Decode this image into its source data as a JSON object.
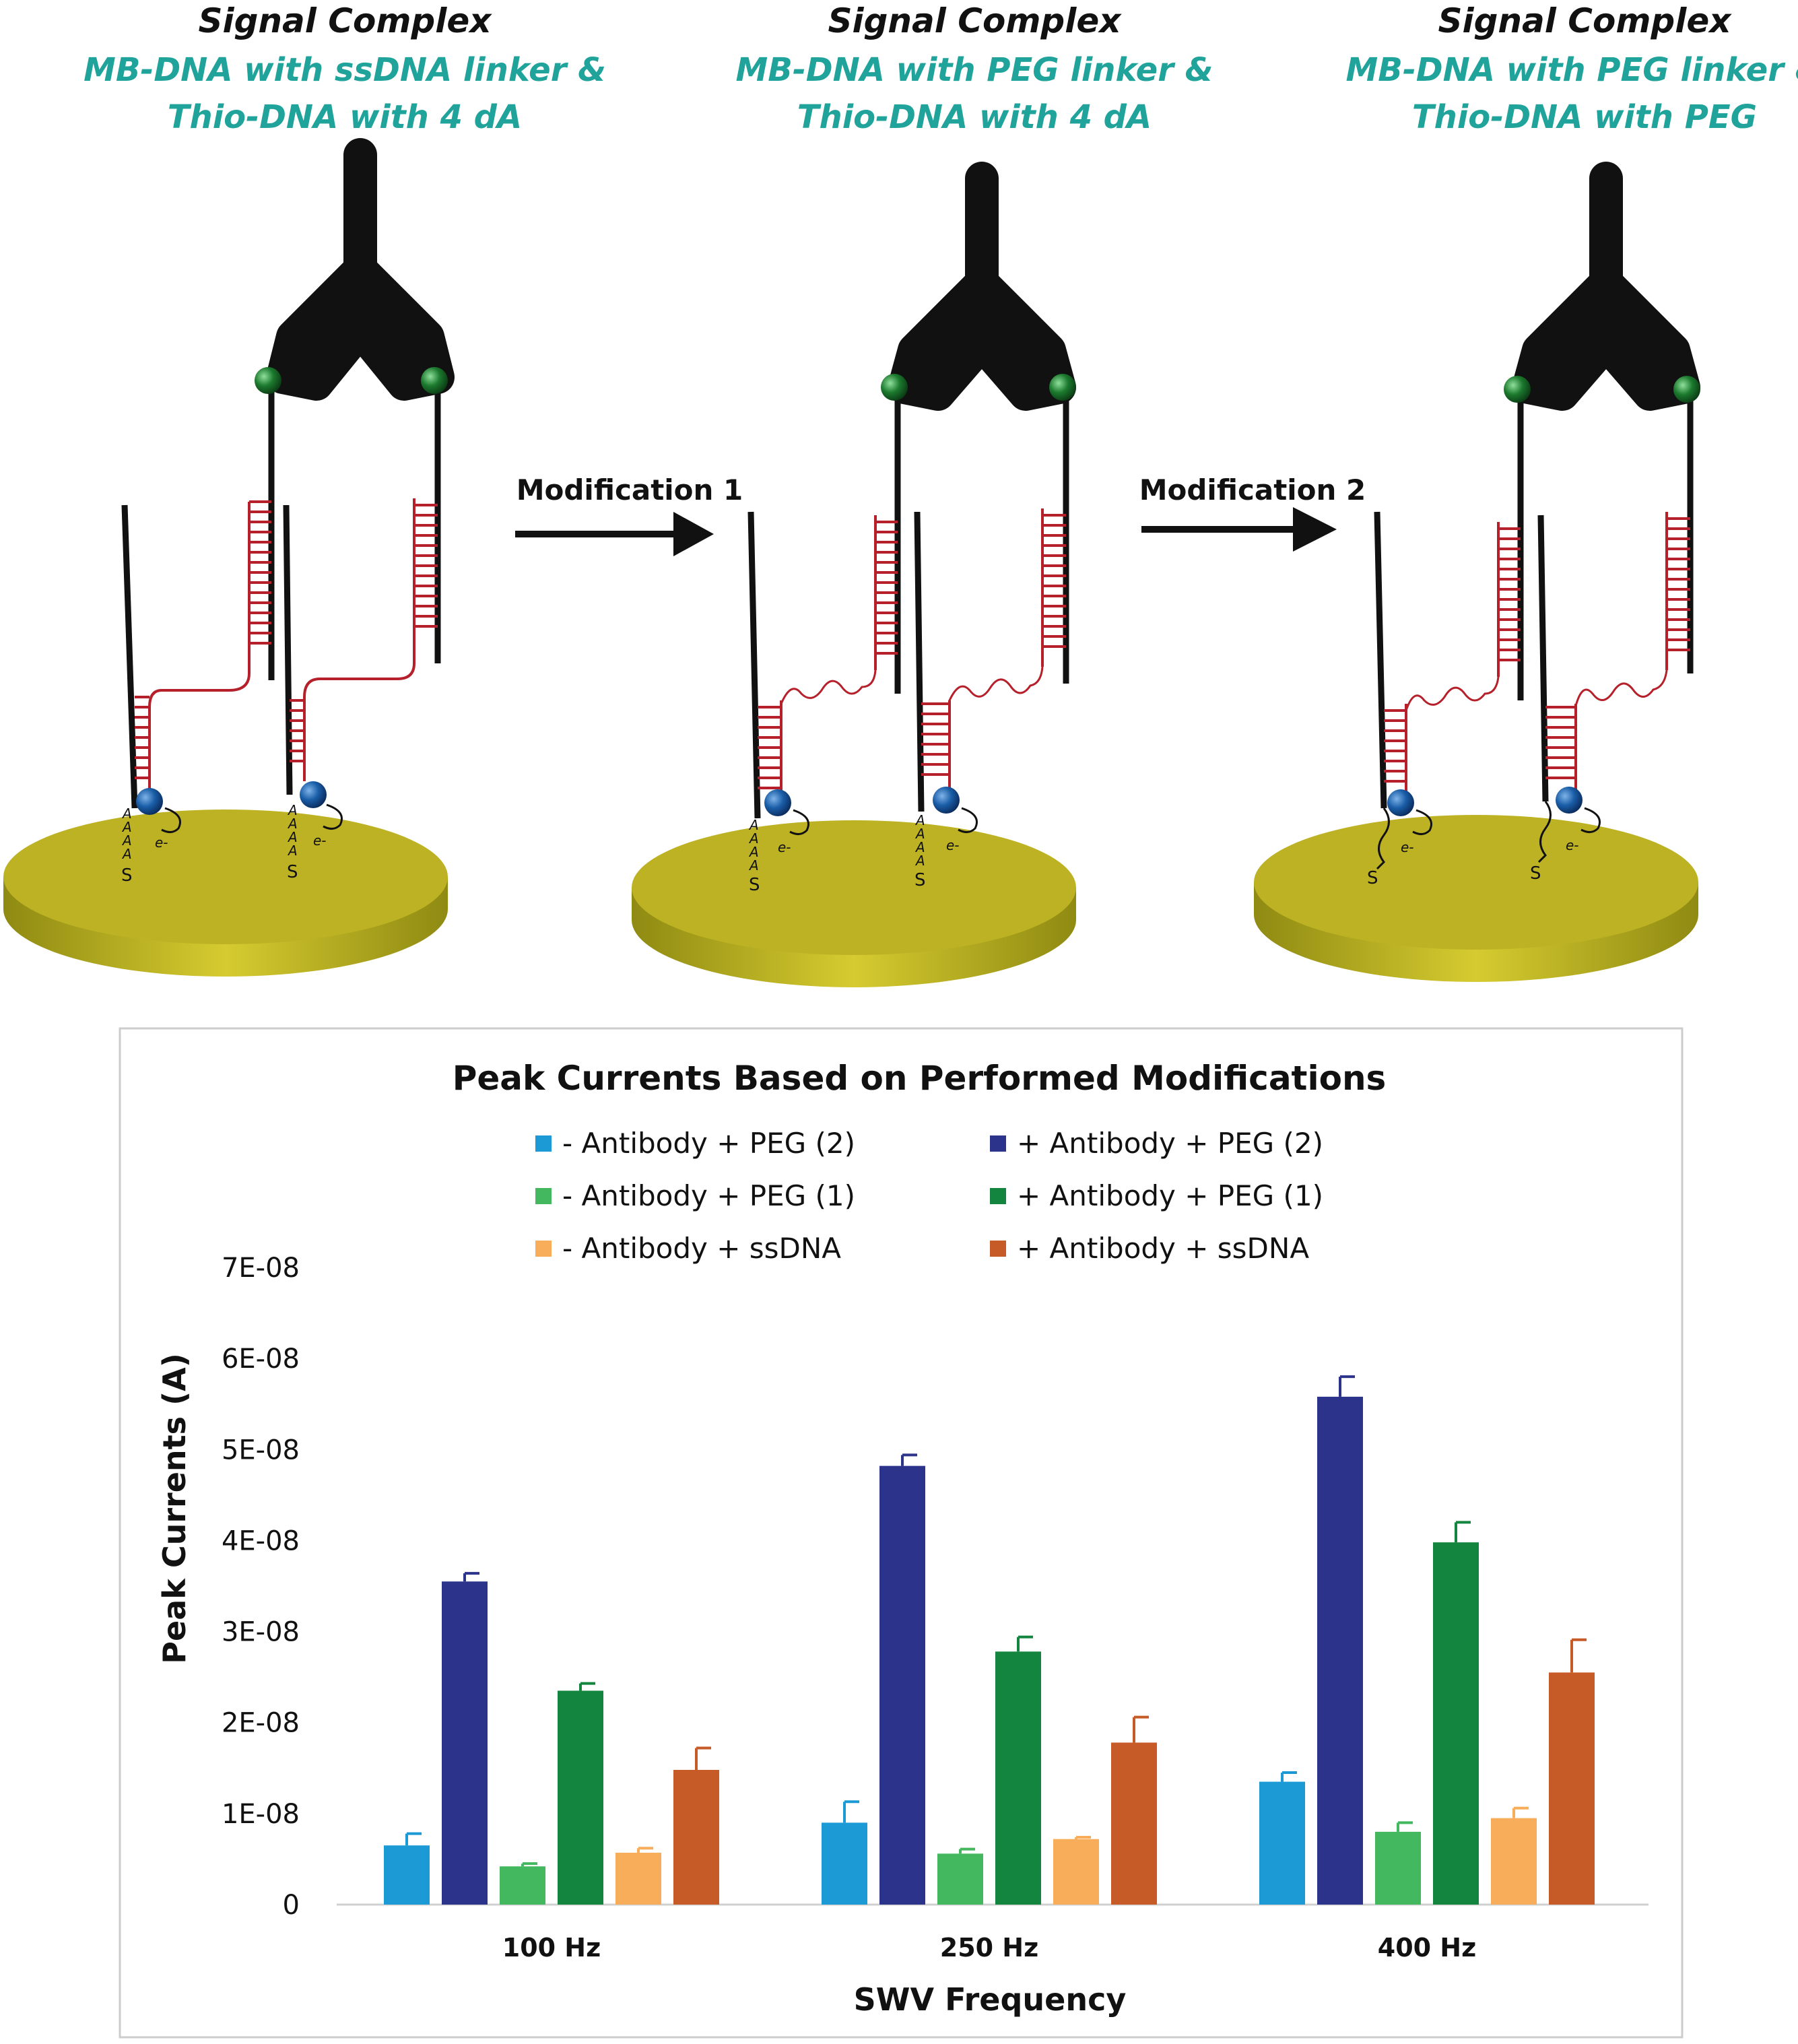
{
  "panels": [
    {
      "title": "Signal Complex",
      "subtitle1": "MB-DNA with ssDNA linker &",
      "subtitle2": "Thio-DNA with 4 dA"
    },
    {
      "title": "Signal Complex",
      "subtitle1": "MB-DNA with PEG linker &",
      "subtitle2": "Thio-DNA with 4 dA"
    },
    {
      "title": "Signal Complex",
      "subtitle1": "MB-DNA with PEG linker &",
      "subtitle2": "Thio-DNA with PEG"
    }
  ],
  "arrows": [
    {
      "label": "Modification 1"
    },
    {
      "label": "Modification 2"
    }
  ],
  "diagram_labels": {
    "adenine": "A",
    "sulfur": "S",
    "electron": "e-"
  },
  "colors": {
    "gold": "#bdb224",
    "linker": "#b5202a",
    "redox": "#1a5ea8",
    "biotin": "#1c7a2e",
    "teal": "#1fa39a"
  },
  "chart_data": {
    "type": "bar",
    "title": "Peak Currents Based on Performed Modifications",
    "xlabel": "SWV Frequency",
    "ylabel": "Peak Currents (A)",
    "categories": [
      "100 Hz",
      "250 Hz",
      "400 Hz"
    ],
    "ylim": [
      0,
      7e-08
    ],
    "yticks": [
      0,
      1e-08,
      2e-08,
      3e-08,
      4e-08,
      5e-08,
      6e-08,
      7e-08
    ],
    "ytick_labels": [
      "0",
      "1E-08",
      "2E-08",
      "3E-08",
      "4E-08",
      "5E-08",
      "6E-08",
      "7E-08"
    ],
    "series": [
      {
        "name": "- Antibody + PEG (2)",
        "color": "#1b9ad6",
        "values": [
          6.5e-09,
          9e-09,
          1.35e-08
        ],
        "errors": [
          1.3e-09,
          2.3e-09,
          1e-09
        ]
      },
      {
        "name": "+ Antibody + PEG (2)",
        "color": "#2b338a",
        "values": [
          3.55e-08,
          4.82e-08,
          5.58e-08
        ],
        "errors": [
          9e-10,
          1.2e-09,
          2.2e-09
        ]
      },
      {
        "name": "- Antibody + PEG (1)",
        "color": "#43b85f",
        "values": [
          4.2e-09,
          5.6e-09,
          8e-09
        ],
        "errors": [
          3e-10,
          5e-10,
          1e-09
        ]
      },
      {
        "name": "+ Antibody + PEG (1)",
        "color": "#13853f",
        "values": [
          2.35e-08,
          2.78e-08,
          3.98e-08
        ],
        "errors": [
          8e-10,
          1.6e-09,
          2.2e-09
        ]
      },
      {
        "name": "- Antibody + ssDNA",
        "color": "#f8ad5a",
        "values": [
          5.7e-09,
          7.2e-09,
          9.5e-09
        ],
        "errors": [
          5e-10,
          2e-10,
          1.1e-09
        ]
      },
      {
        "name": "+ Antibody + ssDNA",
        "color": "#c65b28",
        "values": [
          1.48e-08,
          1.78e-08,
          2.55e-08
        ],
        "errors": [
          2.4e-09,
          2.8e-09,
          3.6e-09
        ]
      }
    ],
    "legend_order": [
      0,
      1,
      2,
      3,
      4,
      5
    ],
    "legend_position": "top"
  }
}
